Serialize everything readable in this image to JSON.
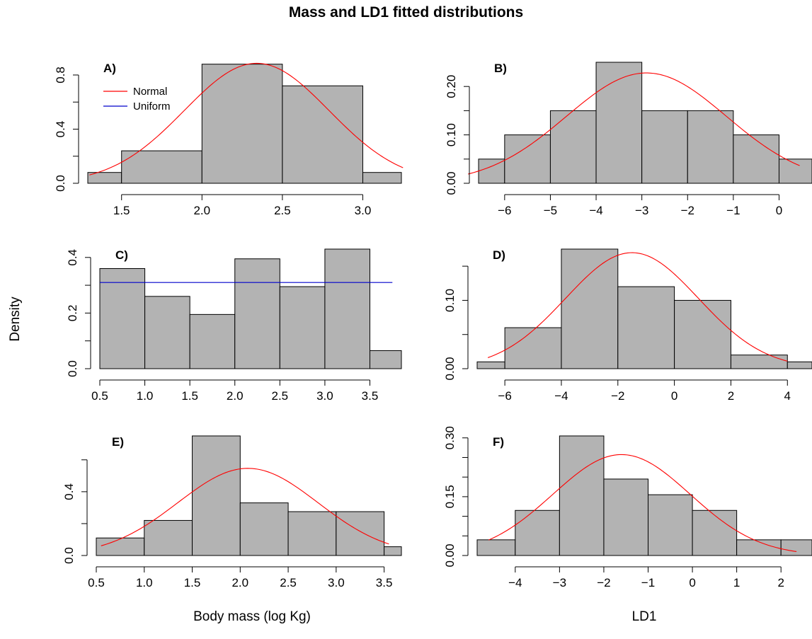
{
  "title": "Mass and LD1 fitted distributions",
  "ylabel": "Density",
  "xlabel_left": "Body mass (log Kg)",
  "xlabel_right": "LD1",
  "colors": {
    "bar_fill": "#b3b3b3",
    "bar_stroke": "#000000",
    "normal": "#ff0000",
    "uniform": "#0000cc"
  },
  "legend": {
    "normal": "Normal",
    "uniform": "Uniform"
  },
  "chart_data": [
    {
      "panel": "A)",
      "type": "bar",
      "bins": [
        [
          1.0,
          1.5,
          0.08
        ],
        [
          1.5,
          2.0,
          0.24
        ],
        [
          2.0,
          2.5,
          0.88
        ],
        [
          2.5,
          3.0,
          0.72
        ],
        [
          3.0,
          3.5,
          0.08
        ]
      ],
      "xticks": [
        1.5,
        2.0,
        2.5,
        3.0
      ],
      "xtick_labels": [
        "1.5",
        "2.0",
        "2.5",
        "3.0"
      ],
      "yticks": [
        0.0,
        0.2,
        0.4,
        0.6,
        0.8
      ],
      "ytick_labels": [
        "0.0",
        "",
        "0.4",
        "",
        "0.8"
      ],
      "normal": {
        "mean": 2.34,
        "sd": 0.45,
        "from": 1.3,
        "to": 3.25
      },
      "legend": true
    },
    {
      "panel": "B)",
      "type": "bar",
      "bins": [
        [
          -7,
          -6,
          0.05
        ],
        [
          -6,
          -5,
          0.1
        ],
        [
          -5,
          -4,
          0.15
        ],
        [
          -4,
          -3,
          0.25
        ],
        [
          -3,
          -2,
          0.15
        ],
        [
          -2,
          -1,
          0.15
        ],
        [
          -1,
          0,
          0.1
        ],
        [
          0,
          1,
          0.05
        ]
      ],
      "xticks": [
        -6,
        -5,
        -4,
        -3,
        -2,
        -1,
        0
      ],
      "xtick_labels": [
        "−6",
        "−5",
        "−4",
        "−3",
        "−2",
        "−1",
        "0"
      ],
      "yticks": [
        0.0,
        0.05,
        0.1,
        0.15,
        0.2
      ],
      "ytick_labels": [
        "0.00",
        "",
        "0.10",
        "",
        "0.20"
      ],
      "normal": {
        "mean": -2.9,
        "sd": 1.75,
        "from": -6.8,
        "to": 0.45
      }
    },
    {
      "panel": "C)",
      "type": "bar",
      "bins": [
        [
          0.5,
          1.0,
          0.36
        ],
        [
          1.0,
          1.5,
          0.26
        ],
        [
          1.5,
          2.0,
          0.195
        ],
        [
          2.0,
          2.5,
          0.395
        ],
        [
          2.5,
          3.0,
          0.295
        ],
        [
          3.0,
          3.5,
          0.43
        ],
        [
          3.5,
          4.0,
          0.065
        ]
      ],
      "xticks": [
        0.5,
        1.0,
        1.5,
        2.0,
        2.5,
        3.0,
        3.5
      ],
      "xtick_labels": [
        "0.5",
        "1.0",
        "1.5",
        "2.0",
        "2.5",
        "3.0",
        "3.5"
      ],
      "yticks": [
        0.0,
        0.1,
        0.2,
        0.3,
        0.4
      ],
      "ytick_labels": [
        "0.0",
        "",
        "0.2",
        "",
        "0.4"
      ],
      "uniform": {
        "value": 0.31,
        "from": 0.5,
        "to": 3.75
      }
    },
    {
      "panel": "D)",
      "type": "bar",
      "bins": [
        [
          -7,
          -6,
          0.01
        ],
        [
          -6,
          -4,
          0.06
        ],
        [
          -4,
          -2,
          0.175
        ],
        [
          -2,
          0,
          0.12
        ],
        [
          0,
          2,
          0.1
        ],
        [
          2,
          4,
          0.02
        ],
        [
          4,
          6,
          0.01
        ]
      ],
      "xticks": [
        -6,
        -4,
        -2,
        0,
        2,
        4
      ],
      "xtick_labels": [
        "−6",
        "−4",
        "−2",
        "0",
        "2",
        "4"
      ],
      "yticks": [
        0.0,
        0.05,
        0.1,
        0.15
      ],
      "ytick_labels": [
        "0.00",
        "",
        "0.10",
        ""
      ],
      "normal": {
        "mean": -1.5,
        "sd": 2.35,
        "from": -6.6,
        "to": 4.0
      }
    },
    {
      "panel": "E)",
      "type": "bar",
      "bins": [
        [
          0.5,
          1.0,
          0.11
        ],
        [
          1.0,
          1.5,
          0.22
        ],
        [
          1.5,
          2.0,
          0.75
        ],
        [
          2.0,
          2.5,
          0.33
        ],
        [
          2.5,
          3.0,
          0.275
        ],
        [
          3.0,
          3.5,
          0.275
        ],
        [
          3.5,
          4.0,
          0.055
        ]
      ],
      "xticks": [
        0.5,
        1.0,
        1.5,
        2.0,
        2.5,
        3.0,
        3.5
      ],
      "xtick_labels": [
        "0.5",
        "1.0",
        "1.5",
        "2.0",
        "2.5",
        "3.0",
        "3.5"
      ],
      "yticks": [
        0.0,
        0.2,
        0.4,
        0.6
      ],
      "ytick_labels": [
        "0.0",
        "",
        "0.4",
        ""
      ],
      "normal": {
        "mean": 2.08,
        "sd": 0.73,
        "from": 0.55,
        "to": 3.55
      }
    },
    {
      "panel": "F)",
      "type": "bar",
      "bins": [
        [
          -5,
          -4,
          0.04
        ],
        [
          -4,
          -3,
          0.115
        ],
        [
          -3,
          -2,
          0.305
        ],
        [
          -2,
          -1,
          0.195
        ],
        [
          -1,
          0,
          0.155
        ],
        [
          0,
          1,
          0.115
        ],
        [
          1,
          2,
          0.04
        ],
        [
          2,
          3,
          0.04
        ]
      ],
      "xticks": [
        -4,
        -3,
        -2,
        -1,
        0,
        1,
        2
      ],
      "xtick_labels": [
        "−4",
        "−3",
        "−2",
        "−1",
        "0",
        "1",
        "2"
      ],
      "yticks": [
        0.0,
        0.05,
        0.1,
        0.15,
        0.2,
        0.25,
        0.3
      ],
      "ytick_labels": [
        "0.00",
        "",
        "",
        "0.15",
        "",
        "",
        "0.30"
      ],
      "normal": {
        "mean": -1.6,
        "sd": 1.55,
        "from": -4.6,
        "to": 2.35
      }
    }
  ]
}
